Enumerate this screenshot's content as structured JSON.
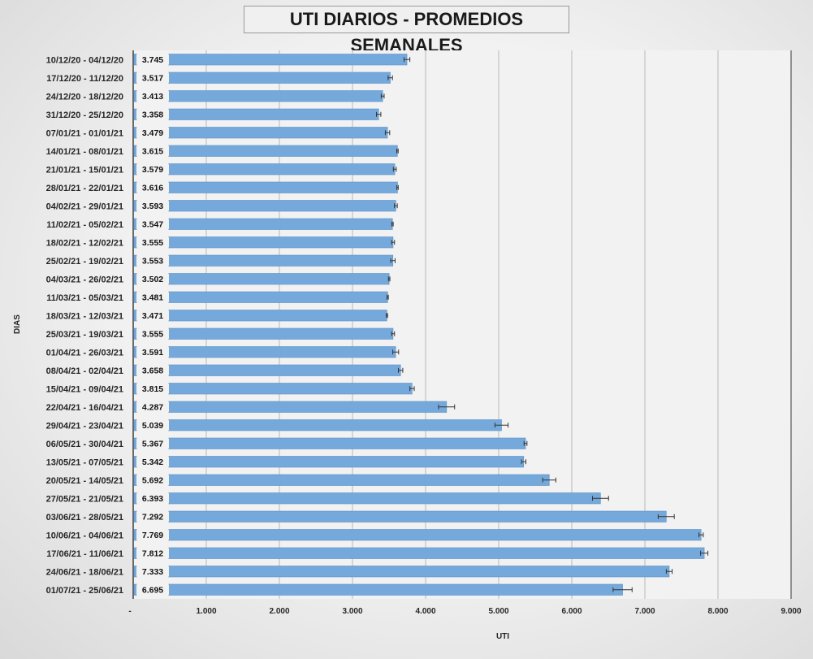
{
  "chart_data": {
    "type": "bar",
    "orientation": "horizontal",
    "title": "UTI DIARIOS - PROMEDIOS SEMANALES",
    "xlabel": "UTI",
    "ylabel": "DIAS",
    "xlim": [
      0,
      9000
    ],
    "x_ticks": [
      "-",
      "1.000",
      "2.000",
      "3.000",
      "4.000",
      "5.000",
      "6.000",
      "7.000",
      "8.000",
      "9.000"
    ],
    "grid": "vertical",
    "categories": [
      "10/12/20 - 04/12/20",
      "17/12/20 - 11/12/20",
      "24/12/20 - 18/12/20",
      "31/12/20 - 25/12/20",
      "07/01/21 - 01/01/21",
      "14/01/21 - 08/01/21",
      "21/01/21 - 15/01/21",
      "28/01/21 - 22/01/21",
      "04/02/21 - 29/01/21",
      "11/02/21 - 05/02/21",
      "18/02/21 - 12/02/21",
      "25/02/21 - 19/02/21",
      "04/03/21 - 26/02/21",
      "11/03/21 - 05/03/21",
      "18/03/21 - 12/03/21",
      "25/03/21 - 19/03/21",
      "01/04/21 - 26/03/21",
      "08/04/21 - 02/04/21",
      "15/04/21 - 09/04/21",
      "22/04/21 - 16/04/21",
      "29/04/21 - 23/04/21",
      "06/05/21 - 30/04/21",
      "13/05/21 - 07/05/21",
      "20/05/21 - 14/05/21",
      "27/05/21 - 21/05/21",
      "03/06/21 - 28/05/21",
      "10/06/21 - 04/06/21",
      "17/06/21 - 11/06/21",
      "24/06/21 - 18/06/21",
      "01/07/21 - 25/06/21"
    ],
    "values": [
      3745,
      3517,
      3413,
      3358,
      3479,
      3615,
      3579,
      3616,
      3593,
      3547,
      3555,
      3553,
      3502,
      3481,
      3471,
      3555,
      3591,
      3658,
      3815,
      4287,
      5039,
      5367,
      5342,
      5692,
      6393,
      7292,
      7769,
      7812,
      7333,
      6695
    ],
    "value_labels": [
      "3.745",
      "3.517",
      "3.413",
      "3.358",
      "3.479",
      "3.615",
      "3.579",
      "3.616",
      "3.593",
      "3.547",
      "3.555",
      "3.553",
      "3.502",
      "3.481",
      "3.471",
      "3.555",
      "3.591",
      "3.658",
      "3.815",
      "4.287",
      "5.039",
      "5.367",
      "5.342",
      "5.692",
      "6.393",
      "7.292",
      "7.769",
      "7.812",
      "7.333",
      "6.695"
    ],
    "errors": [
      40,
      30,
      20,
      30,
      30,
      10,
      20,
      10,
      20,
      10,
      20,
      30,
      10,
      10,
      10,
      20,
      40,
      30,
      30,
      110,
      90,
      20,
      30,
      90,
      110,
      110,
      30,
      50,
      40,
      130
    ],
    "bar_color": "#76a9db",
    "bar_stroke": "#5b8fc6",
    "label_bg": "#f2f2f2"
  }
}
